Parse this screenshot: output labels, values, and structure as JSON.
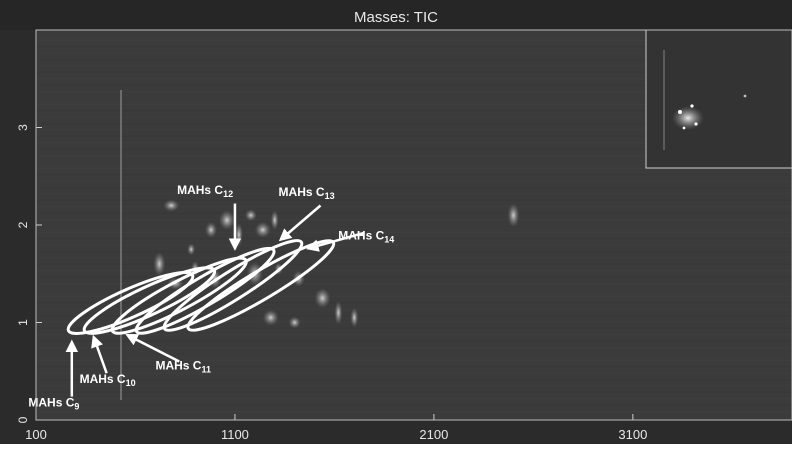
{
  "chart_data": {
    "type": "heatmap",
    "title": "Masses: TIC",
    "xlabel": "",
    "ylabel": "",
    "xlim": [
      100,
      3900
    ],
    "ylim": [
      0,
      4.0
    ],
    "x_ticks": [
      100,
      1100,
      2100,
      3100
    ],
    "x_tick_labels": [
      "100",
      "1100",
      "2100",
      "3100"
    ],
    "y_ticks": [
      0,
      1,
      2,
      3
    ],
    "y_tick_labels": [
      "0",
      "1",
      "2",
      "3"
    ],
    "colors": {
      "plot_background": "#3a3a3a",
      "ellipse_stroke": "#ffffff",
      "frame": "#ffffff"
    },
    "ellipses": [
      {
        "label_prefix": "MAHs C",
        "label_sub": "9",
        "x_start": 300,
        "y_start": 0.95,
        "x_end": 850,
        "y_end": 1.45
      },
      {
        "label_prefix": "MAHs C",
        "label_sub": "10",
        "x_start": 380,
        "y_start": 0.95,
        "x_end": 960,
        "y_end": 1.5
      },
      {
        "label_prefix": "MAHs C",
        "label_sub": "11",
        "x_start": 520,
        "y_start": 0.95,
        "x_end": 1120,
        "y_end": 1.6
      },
      {
        "label_prefix": "MAHs C",
        "label_sub": "12",
        "x_start": 640,
        "y_start": 0.95,
        "x_end": 1260,
        "y_end": 1.7
      },
      {
        "label_prefix": "MAHs C",
        "label_sub": "13",
        "x_start": 780,
        "y_start": 0.98,
        "x_end": 1400,
        "y_end": 1.78
      },
      {
        "label_prefix": "MAHs C",
        "label_sub": "14",
        "x_start": 900,
        "y_start": 0.98,
        "x_end": 1560,
        "y_end": 1.78
      }
    ],
    "annotations": [
      {
        "prefix": "MAHs C",
        "sub": "9",
        "text_x": 190,
        "text_y": 0.14,
        "arrow_tail_x": 280,
        "arrow_tail_y": 0.24,
        "arrow_head_x": 280,
        "arrow_head_y": 0.8
      },
      {
        "prefix": "MAHs C",
        "sub": "10",
        "text_x": 460,
        "text_y": 0.38,
        "arrow_tail_x": 455,
        "arrow_tail_y": 0.48,
        "arrow_head_x": 390,
        "arrow_head_y": 0.85
      },
      {
        "prefix": "MAHs C",
        "sub": "11",
        "text_x": 840,
        "text_y": 0.52,
        "arrow_tail_x": 820,
        "arrow_tail_y": 0.6,
        "arrow_head_x": 560,
        "arrow_head_y": 0.87
      },
      {
        "prefix": "MAHs C",
        "sub": "12",
        "text_x": 950,
        "text_y": 2.32,
        "arrow_tail_x": 1100,
        "arrow_tail_y": 2.22,
        "arrow_head_x": 1100,
        "arrow_head_y": 1.76
      },
      {
        "prefix": "MAHs C",
        "sub": "13",
        "text_x": 1460,
        "text_y": 2.3,
        "arrow_tail_x": 1530,
        "arrow_tail_y": 2.2,
        "arrow_head_x": 1330,
        "arrow_head_y": 1.85
      },
      {
        "prefix": "MAHs C",
        "sub": "14",
        "text_x": 1760,
        "text_y": 1.85,
        "arrow_tail_x": 1750,
        "arrow_tail_y": 1.92,
        "arrow_head_x": 1470,
        "arrow_head_y": 1.76
      }
    ]
  }
}
